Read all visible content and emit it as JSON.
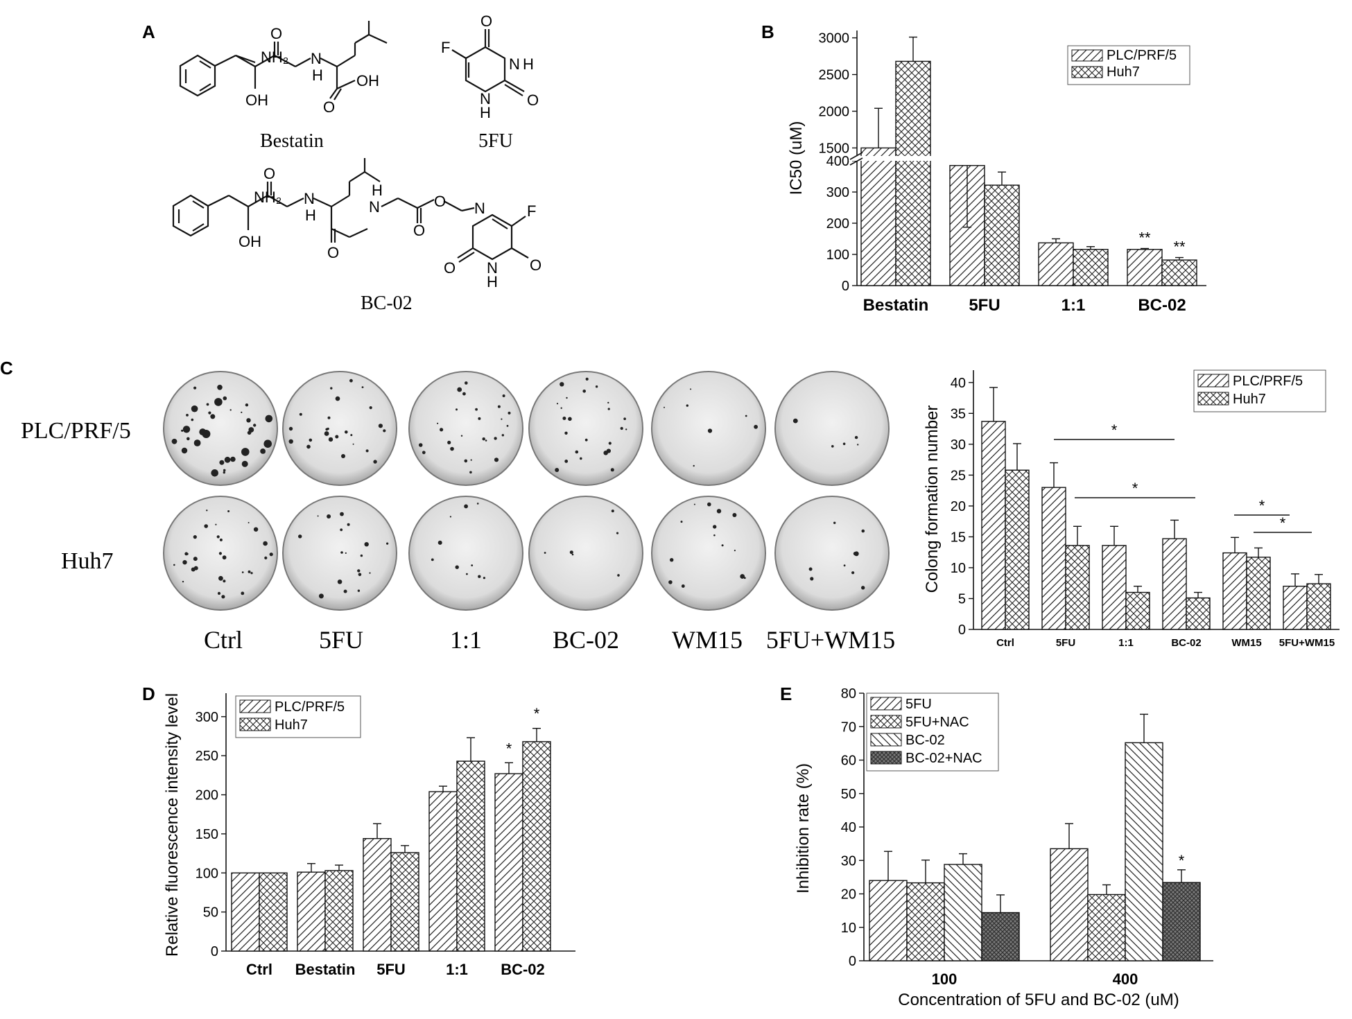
{
  "panel_labels": {
    "a": "A",
    "b": "B",
    "c": "C",
    "d": "D",
    "e": "E"
  },
  "structures": {
    "bestatin": {
      "name": "Bestatin",
      "nh2": "NH₂",
      "oh": "OH",
      "oh2": "OH",
      "nh": "H",
      "n": "N"
    },
    "fu": {
      "name": "5FU",
      "f": "F",
      "nh": "H",
      "n1": "N",
      "nh2": "H",
      "n2": "N"
    },
    "bc02": {
      "name": "BC-02",
      "nh2": "NH₂",
      "oh": "OH",
      "nh": "H",
      "n1": "N",
      "nh3": "H",
      "n2": "N",
      "o1": "O",
      "n3": "N",
      "f": "F",
      "nh4": "H",
      "n4": "N"
    },
    "atom_o": "O"
  },
  "panel_c": {
    "row_labels": [
      "PLC/PRF/5",
      "Huh7"
    ],
    "col_labels": [
      "Ctrl",
      "5FU",
      "1:1",
      "BC-02",
      "WM15",
      "5FU+WM15"
    ],
    "plate_density": [
      [
        38,
        24,
        26,
        24,
        7,
        5
      ],
      [
        30,
        18,
        10,
        6,
        14,
        9
      ]
    ]
  },
  "chart_data": [
    {
      "id": "B",
      "type": "bar",
      "categories": [
        "Bestatin",
        "5FU",
        "1:1",
        "BC-02"
      ],
      "series": [
        {
          "name": "PLC/PRF/5",
          "values": [
            1500,
            385,
            137,
            116
          ],
          "errors": [
            540,
            35,
            13,
            3
          ]
        },
        {
          "name": "Huh7",
          "values": [
            2680,
            322,
            116,
            82
          ],
          "errors": [
            330,
            42,
            9,
            8
          ]
        }
      ],
      "xlabel": "",
      "ylabel": "IC50 (uM)",
      "axis_break": {
        "lower": [
          0,
          400
        ],
        "upper": [
          1400,
          3100
        ]
      },
      "yticks": [
        0,
        100,
        200,
        300,
        400,
        1500,
        2000,
        2500,
        3000
      ],
      "annotations": [
        "**",
        "**"
      ],
      "legend": "top-right"
    },
    {
      "id": "C",
      "type": "bar",
      "categories": [
        "Ctrl",
        "5FU",
        "1:1",
        "BC-02",
        "WM15",
        "5FU+WM15"
      ],
      "series": [
        {
          "name": "PLC/PRF/5",
          "values": [
            33.7,
            23.0,
            13.6,
            14.7,
            12.4,
            7.0
          ],
          "errors": [
            5.5,
            4.0,
            3.1,
            3.0,
            2.5,
            2.0
          ]
        },
        {
          "name": "Huh7",
          "values": [
            25.8,
            13.6,
            6.0,
            5.1,
            11.7,
            7.4
          ],
          "errors": [
            4.3,
            3.1,
            1.0,
            0.9,
            1.5,
            1.5
          ]
        }
      ],
      "xlabel": "",
      "ylabel": "Colong formation number",
      "ylim": [
        0,
        42
      ],
      "yticks": [
        0,
        5,
        10,
        15,
        20,
        25,
        30,
        35,
        40
      ],
      "significance_label": "*",
      "legend": "top-right"
    },
    {
      "id": "D",
      "type": "bar",
      "categories": [
        "Ctrl",
        "Bestatin",
        "5FU",
        "1:1",
        "BC-02"
      ],
      "series": [
        {
          "name": "PLC/PRF/5",
          "values": [
            100,
            101,
            144,
            204,
            227
          ],
          "errors": [
            0,
            11,
            19,
            7,
            14
          ]
        },
        {
          "name": "Huh7",
          "values": [
            100,
            103,
            126,
            243,
            268
          ],
          "errors": [
            0,
            7,
            9,
            30,
            17
          ]
        }
      ],
      "xlabel": "",
      "ylabel": "Relative fluorescence intensity level",
      "ylim": [
        0,
        330
      ],
      "yticks": [
        0,
        50,
        100,
        150,
        200,
        250,
        300
      ],
      "annotations": [
        "*",
        "*"
      ],
      "legend": "top-left"
    },
    {
      "id": "E",
      "type": "bar",
      "categories": [
        "100",
        "400"
      ],
      "series": [
        {
          "name": "5FU",
          "values": [
            24.0,
            33.5
          ],
          "errors": [
            8.7,
            7.5
          ]
        },
        {
          "name": "5FU+NAC",
          "values": [
            23.3,
            19.8
          ],
          "errors": [
            6.8,
            2.9
          ]
        },
        {
          "name": "BC-02",
          "values": [
            28.8,
            65.2
          ],
          "errors": [
            3.2,
            8.5
          ]
        },
        {
          "name": "BC-02+NAC",
          "values": [
            14.4,
            23.4
          ],
          "errors": [
            5.3,
            3.8
          ]
        }
      ],
      "xlabel": "Concentration of 5FU and BC-02 (uM)",
      "ylabel": "Inhibition rate (%)",
      "ylim": [
        0,
        80
      ],
      "yticks": [
        0,
        10,
        20,
        30,
        40,
        50,
        60,
        70,
        80
      ],
      "annotations": [
        "*"
      ],
      "legend": "top-left"
    }
  ]
}
